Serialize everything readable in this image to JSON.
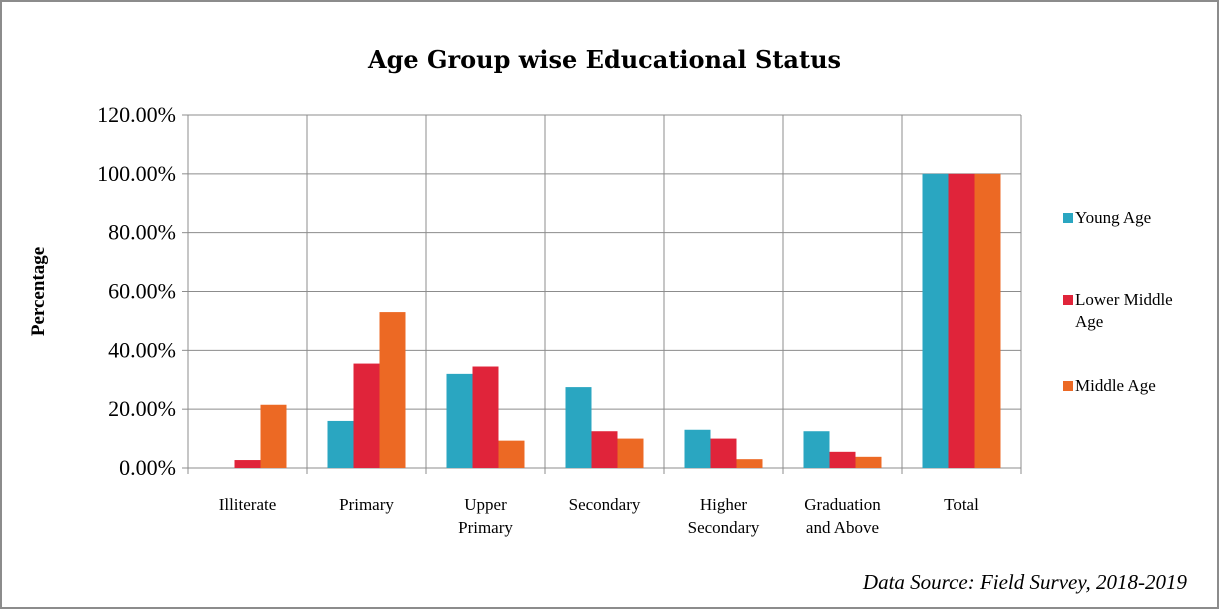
{
  "chart_data": {
    "type": "bar",
    "title": "Age Group wise Educational Status",
    "ylabel": "Percentage",
    "xlabel": "",
    "ylim": [
      0,
      1.2
    ],
    "yticks": [
      "0.00%",
      "20.00%",
      "40.00%",
      "60.00%",
      "80.00%",
      "100.00%",
      "120.00%"
    ],
    "categories": [
      [
        "Illiterate"
      ],
      [
        "Primary"
      ],
      [
        "Upper",
        "Primary"
      ],
      [
        "Secondary"
      ],
      [
        "Higher",
        "Secondary"
      ],
      [
        "Graduation",
        "and Above"
      ],
      [
        "Total"
      ]
    ],
    "series": [
      {
        "name": "Young Age",
        "color": "#2aa6c1",
        "values": [
          0.0,
          0.16,
          0.32,
          0.275,
          0.13,
          0.125,
          1.0
        ]
      },
      {
        "name": "Lower Middle Age",
        "color": "#e0243a",
        "values": [
          0.027,
          0.355,
          0.345,
          0.125,
          0.1,
          0.055,
          1.0
        ]
      },
      {
        "name": "Middle Age",
        "color": "#ec6924",
        "values": [
          0.215,
          0.53,
          0.093,
          0.1,
          0.03,
          0.038,
          1.0
        ]
      }
    ],
    "legend": {
      "position": "right",
      "entries": [
        [
          "Young Age"
        ],
        [
          "Lower Middle",
          "Age"
        ],
        [
          "Middle Age"
        ]
      ]
    },
    "grid": true
  },
  "source_note": "Data Source: Field Survey, 2018-2019"
}
